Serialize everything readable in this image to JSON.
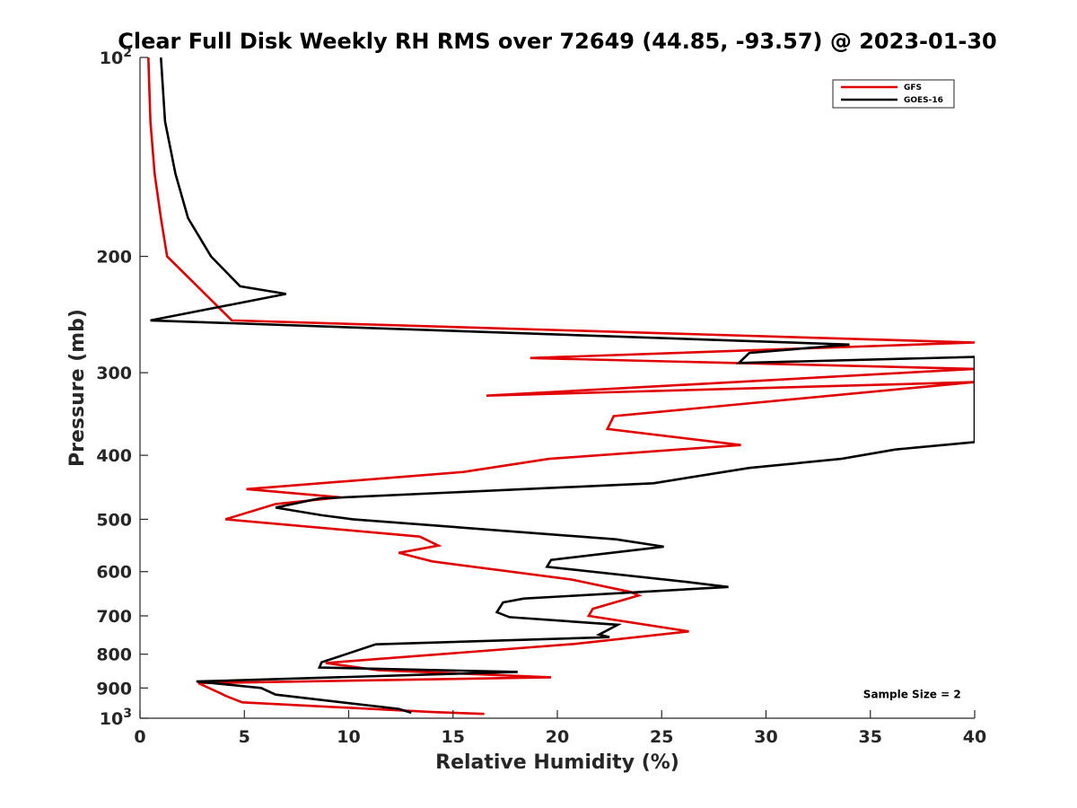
{
  "chart_data": {
    "type": "line",
    "title": "Clear Full Disk Weekly RH RMS over 72649 (44.85, -93.57) @ 2023-01-30",
    "xlabel": "Relative Humidity (%)",
    "ylabel": "Pressure (mb)",
    "xlim": [
      0,
      40
    ],
    "ylim": [
      100,
      1000
    ],
    "y_scale": "log",
    "y_reversed": true,
    "grid": false,
    "legend_position": "top-right",
    "x_ticks": [
      0,
      5,
      10,
      15,
      20,
      25,
      30,
      35,
      40
    ],
    "x_tick_labels": [
      "0",
      "5",
      "10",
      "15",
      "20",
      "25",
      "30",
      "35",
      "40"
    ],
    "y_ticks": [
      100,
      200,
      300,
      400,
      500,
      600,
      700,
      800,
      900,
      1000
    ],
    "y_tick_labels": [
      {
        "base": "10",
        "exp": "2"
      },
      {
        "base": "200",
        "exp": ""
      },
      {
        "base": "300",
        "exp": ""
      },
      {
        "base": "400",
        "exp": ""
      },
      {
        "base": "500",
        "exp": ""
      },
      {
        "base": "600",
        "exp": ""
      },
      {
        "base": "700",
        "exp": ""
      },
      {
        "base": "800",
        "exp": ""
      },
      {
        "base": "900",
        "exp": ""
      },
      {
        "base": "10",
        "exp": "3"
      }
    ],
    "series": [
      {
        "name": "GFS",
        "color": "#e00000",
        "points": [
          [
            0.4,
            100
          ],
          [
            0.5,
            125
          ],
          [
            0.7,
            150
          ],
          [
            1.0,
            175
          ],
          [
            1.3,
            200
          ],
          [
            4.4,
            250
          ],
          [
            40,
            270
          ],
          [
            18.7,
            285
          ],
          [
            40,
            296
          ],
          [
            16.6,
            325
          ],
          [
            40,
            310
          ],
          [
            22.7,
            349
          ],
          [
            22.4,
            365
          ],
          [
            28.8,
            386
          ],
          [
            19.6,
            405
          ],
          [
            15.5,
            424
          ],
          [
            5.1,
            450
          ],
          [
            9.6,
            463
          ],
          [
            6.5,
            474
          ],
          [
            4.1,
            500
          ],
          [
            13.4,
            531
          ],
          [
            14.3,
            548
          ],
          [
            12.4,
            562
          ],
          [
            14.0,
            579
          ],
          [
            20.7,
            617
          ],
          [
            23.5,
            644
          ],
          [
            23.9,
            652
          ],
          [
            21.7,
            683
          ],
          [
            21.5,
            700
          ],
          [
            26.3,
            739
          ],
          [
            20.8,
            772
          ],
          [
            8.9,
            825
          ],
          [
            11.4,
            846
          ],
          [
            19.7,
            867
          ],
          [
            2.8,
            885
          ],
          [
            3.9,
            918
          ],
          [
            4.1,
            925
          ],
          [
            4.9,
            946
          ],
          [
            14.1,
            979
          ],
          [
            16.5,
            985
          ]
        ]
      },
      {
        "name": "GOES-16",
        "color": "#000000",
        "points": [
          [
            1.0,
            100
          ],
          [
            1.2,
            125
          ],
          [
            1.7,
            150
          ],
          [
            2.3,
            175
          ],
          [
            3.4,
            200
          ],
          [
            4.8,
            222
          ],
          [
            7.0,
            228
          ],
          [
            0.5,
            250
          ],
          [
            34.0,
            272
          ],
          [
            29.2,
            280
          ],
          [
            28.7,
            290
          ],
          [
            40,
            284
          ],
          [
            40,
            382
          ],
          [
            36.2,
            392
          ],
          [
            33.6,
            405
          ],
          [
            29.2,
            418
          ],
          [
            24.6,
            441
          ],
          [
            8.6,
            465
          ],
          [
            6.5,
            480
          ],
          [
            8.7,
            493
          ],
          [
            10.2,
            500
          ],
          [
            22.8,
            536
          ],
          [
            25.1,
            550
          ],
          [
            19.7,
            576
          ],
          [
            19.5,
            590
          ],
          [
            26.2,
            622
          ],
          [
            28.2,
            633
          ],
          [
            18.4,
            659
          ],
          [
            17.4,
            668
          ],
          [
            17.1,
            691
          ],
          [
            17.7,
            703
          ],
          [
            22.9,
            722
          ],
          [
            22.0,
            747
          ],
          [
            22.5,
            754
          ],
          [
            11.3,
            773
          ],
          [
            8.7,
            823
          ],
          [
            8.6,
            838
          ],
          [
            18.1,
            851
          ],
          [
            2.7,
            880
          ],
          [
            5.8,
            900
          ],
          [
            6.5,
            921
          ],
          [
            12.4,
            968
          ],
          [
            13.0,
            981
          ]
        ]
      }
    ],
    "annotations": [
      {
        "text": "Sample Size = 2",
        "x": 37,
        "y": 920
      }
    ]
  }
}
